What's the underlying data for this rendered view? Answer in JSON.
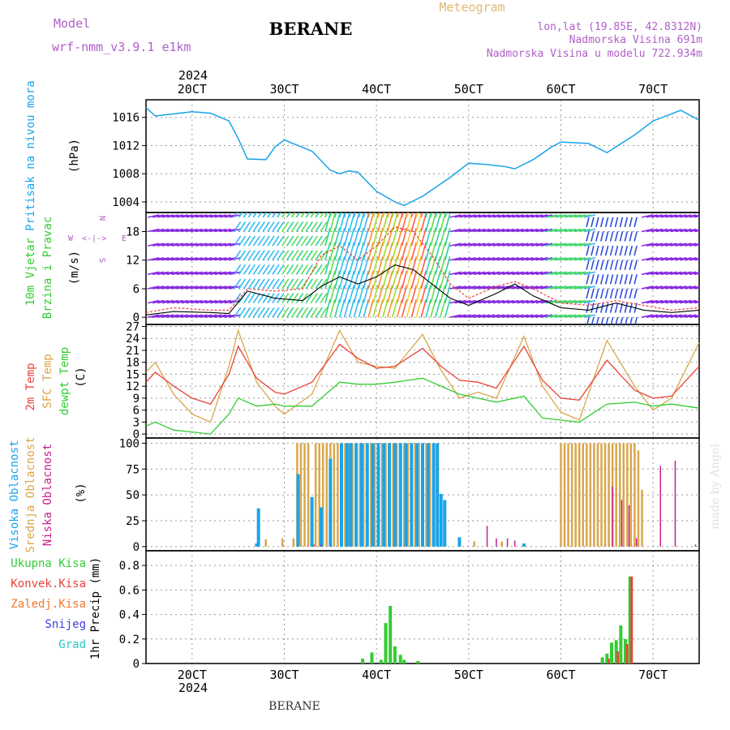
{
  "header": {
    "title": "BERANE",
    "meteogram_label": "Meteogram",
    "model_label": "Model",
    "model_name": "wrf-nmm_v3.9.1  e1km",
    "location": "lon,lat (19.85E, 42.8312N)",
    "elevation": "Nadmorska Visina 691m",
    "model_elevation": "Nadmorska Visina u modelu 722.934m",
    "footer": "BERANE",
    "watermark": "made by Angel",
    "year": "2024"
  },
  "colors": {
    "pressure": "#1aa3e8",
    "temp2m": "#e8443a",
    "sfc_temp": "#d9a64a",
    "dewpt": "#33cc33",
    "high_cloud": "#1aa3e8",
    "mid_cloud": "#d9a64a",
    "low_cloud": "#c8208c",
    "total_precip": "#33cc33",
    "convective_precip": "#e8443a",
    "freezing_precip": "#f07830",
    "snow": "#3f3fe0",
    "hail": "#22c8c8"
  },
  "chart_data": [
    {
      "type": "line",
      "panel": "pressure",
      "ylabel_lines": [
        "Pritisak na nivou mora",
        "(hPa)"
      ],
      "x_ticks": [
        "20CT",
        "30CT",
        "40CT",
        "50CT",
        "60CT",
        "70CT"
      ],
      "y_ticks": [
        1004,
        1008,
        1012,
        1016
      ],
      "ylim": [
        1002.5,
        1018.5
      ],
      "xlim": [
        1.5,
        7.5
      ],
      "grid": true,
      "series": [
        {
          "x": [
            1.5,
            1.6,
            1.8,
            2.0,
            2.2,
            2.4,
            2.5,
            2.6,
            2.8,
            2.9,
            3.0,
            3.3,
            3.5,
            3.6,
            3.7,
            3.8,
            4.0,
            4.2,
            4.3,
            4.5,
            4.8,
            5.0,
            5.2,
            5.4,
            5.5,
            5.7,
            5.9,
            6.0,
            6.3,
            6.5,
            6.8,
            7.0,
            7.3,
            7.5
          ],
          "y": [
            1017.4,
            1016.2,
            1016.5,
            1016.8,
            1016.6,
            1015.5,
            1013.0,
            1010.1,
            1010.0,
            1011.8,
            1012.8,
            1011.2,
            1008.5,
            1008.0,
            1008.4,
            1008.2,
            1005.5,
            1004.0,
            1003.5,
            1004.8,
            1007.5,
            1009.5,
            1009.3,
            1009.0,
            1008.7,
            1010.0,
            1011.8,
            1012.5,
            1012.3,
            1011.0,
            1013.5,
            1015.5,
            1017.0,
            1015.6
          ]
        }
      ]
    },
    {
      "type": "line",
      "panel": "wind",
      "ylabel_lines": [
        "10m Vjetar",
        "Brzina i Pravac",
        "(m/s)"
      ],
      "direction_legend": "N, W, E, S",
      "y_ticks": [
        0,
        6,
        12,
        18
      ],
      "ylim": [
        -1.5,
        22
      ],
      "xlim": [
        1.5,
        7.5
      ],
      "grid": true,
      "series": [
        {
          "x": [
            1.5,
            1.8,
            2.2,
            2.4,
            2.6,
            2.9,
            3.2,
            3.4,
            3.6,
            3.8,
            4.0,
            4.2,
            4.4,
            4.6,
            4.8,
            5.0,
            5.3,
            5.5,
            5.7,
            6.0,
            6.3,
            6.6,
            6.9,
            7.2,
            7.5
          ],
          "y": [
            0.5,
            1.2,
            1.0,
            0.8,
            5.5,
            4.0,
            3.5,
            6.5,
            8.5,
            7.0,
            8.5,
            11.0,
            10.0,
            7.0,
            4.0,
            2.5,
            5.0,
            7.0,
            4.5,
            2.0,
            1.5,
            3.0,
            1.5,
            1.0,
            1.5
          ]
        },
        {
          "x": [
            1.5,
            1.8,
            2.2,
            2.4,
            2.6,
            2.9,
            3.2,
            3.4,
            3.6,
            3.8,
            4.0,
            4.2,
            4.4,
            4.6,
            4.8,
            5.0,
            5.3,
            5.5,
            5.7,
            6.0,
            6.3,
            6.6,
            6.9,
            7.2,
            7.5
          ],
          "y": [
            1.0,
            2.0,
            1.5,
            1.5,
            6.0,
            5.5,
            6.0,
            13.0,
            15.0,
            12.0,
            15.0,
            19.0,
            18.0,
            13.0,
            7.0,
            4.0,
            6.5,
            7.5,
            6.0,
            3.0,
            2.5,
            3.5,
            2.5,
            1.5,
            2.0
          ]
        }
      ]
    },
    {
      "type": "line",
      "panel": "temperature",
      "ylabel_lines": [
        "2m Temp",
        "SFC Temp",
        "dewpt Temp",
        "(C)"
      ],
      "y_ticks": [
        0,
        3,
        6,
        9,
        12,
        15,
        18,
        21,
        24,
        27
      ],
      "ylim": [
        -1,
        27.5
      ],
      "xlim": [
        1.5,
        7.5
      ],
      "grid": true,
      "series": [
        {
          "name": "2m Temp",
          "x": [
            1.5,
            1.6,
            1.8,
            2.0,
            2.2,
            2.4,
            2.5,
            2.7,
            2.9,
            3.0,
            3.3,
            3.6,
            3.8,
            4.0,
            4.2,
            4.5,
            4.7,
            4.9,
            5.1,
            5.3,
            5.6,
            5.8,
            6.0,
            6.2,
            6.5,
            6.8,
            7.0,
            7.2,
            7.5
          ],
          "y": [
            13,
            15.5,
            12,
            9,
            7.5,
            15,
            22,
            14,
            10.5,
            10,
            13,
            22.5,
            19,
            16.5,
            17,
            21.5,
            17,
            13.5,
            13,
            11.5,
            22,
            13.5,
            9,
            8.5,
            18.5,
            11,
            9,
            9.5,
            17
          ]
        },
        {
          "name": "SFC Temp",
          "x": [
            1.5,
            1.6,
            1.8,
            2.0,
            2.2,
            2.4,
            2.5,
            2.7,
            2.9,
            3.0,
            3.3,
            3.6,
            3.8,
            4.0,
            4.2,
            4.5,
            4.7,
            4.9,
            5.1,
            5.3,
            5.6,
            5.8,
            6.0,
            6.2,
            6.5,
            6.8,
            7.0,
            7.2,
            7.5
          ],
          "y": [
            15.5,
            18,
            10,
            5,
            3,
            17,
            26,
            13,
            7,
            5,
            10,
            26,
            18,
            17,
            16.5,
            25,
            16,
            9,
            10.5,
            9,
            24.5,
            12,
            5.5,
            3.5,
            23.5,
            12,
            6,
            9,
            23
          ]
        },
        {
          "name": "dewpt Temp",
          "x": [
            1.5,
            1.6,
            1.8,
            2.0,
            2.2,
            2.4,
            2.5,
            2.7,
            2.9,
            3.0,
            3.3,
            3.6,
            3.8,
            4.0,
            4.2,
            4.5,
            4.7,
            4.9,
            5.1,
            5.3,
            5.6,
            5.8,
            6.0,
            6.2,
            6.5,
            6.8,
            7.0,
            7.2,
            7.5
          ],
          "y": [
            2,
            3,
            1,
            0.5,
            0,
            5,
            9,
            7,
            7.5,
            7,
            7,
            13,
            12.5,
            12.5,
            13,
            14,
            12,
            10,
            9,
            8,
            9.5,
            4,
            3.5,
            3,
            7.5,
            8,
            7,
            7.5,
            6.5
          ]
        }
      ]
    },
    {
      "type": "bar",
      "panel": "cloud",
      "ylabel_lines": [
        "Visoka Oblacnost",
        "Srednja Oblacnost",
        "Niska Oblacnost",
        "(%)"
      ],
      "y_ticks": [
        0,
        25,
        50,
        75,
        100
      ],
      "ylim": [
        -4,
        105
      ],
      "xlim": [
        1.5,
        7.5
      ],
      "grid": true,
      "series": [
        {
          "name": "Visoka Oblacnost",
          "x": [
            2.7,
            2.72,
            3.15,
            3.3,
            3.4,
            3.5,
            3.62,
            3.68,
            3.72,
            3.78,
            3.84,
            3.9,
            3.96,
            4.02,
            4.08,
            4.14,
            4.2,
            4.26,
            4.32,
            4.38,
            4.44,
            4.5,
            4.56,
            4.62,
            4.66,
            4.7,
            4.74,
            4.9,
            5.6
          ],
          "y": [
            3,
            37,
            70,
            48,
            38,
            85,
            100,
            100,
            100,
            100,
            100,
            100,
            100,
            100,
            100,
            100,
            100,
            100,
            100,
            100,
            100,
            100,
            100,
            100,
            100,
            51,
            45,
            9,
            3
          ]
        },
        {
          "name": "Srednja Oblacnost",
          "x": [
            2.8,
            2.98,
            3.1,
            3.14,
            3.18,
            3.22,
            3.26,
            3.3,
            3.34,
            3.38,
            3.42,
            3.46,
            3.5,
            3.54,
            3.58,
            3.62,
            3.66,
            3.7,
            3.74,
            3.78,
            3.82,
            3.86,
            3.9,
            3.94,
            3.98,
            4.02,
            4.06,
            4.1,
            4.14,
            4.18,
            4.22,
            4.26,
            4.3,
            4.34,
            4.38,
            4.42,
            4.46,
            4.5,
            4.54,
            4.58,
            5.06,
            5.36,
            6.0,
            6.04,
            6.08,
            6.12,
            6.16,
            6.2,
            6.24,
            6.28,
            6.32,
            6.36,
            6.4,
            6.44,
            6.48,
            6.52,
            6.56,
            6.6,
            6.64,
            6.68,
            6.72,
            6.76,
            6.8,
            6.84,
            6.88
          ],
          "y": [
            7,
            8,
            8,
            100,
            100,
            100,
            100,
            30,
            100,
            100,
            100,
            100,
            100,
            100,
            100,
            100,
            100,
            100,
            100,
            100,
            100,
            100,
            100,
            100,
            100,
            100,
            100,
            100,
            100,
            100,
            100,
            100,
            100,
            100,
            100,
            100,
            100,
            100,
            100,
            100,
            5,
            5,
            100,
            100,
            100,
            100,
            100,
            100,
            100,
            100,
            100,
            100,
            100,
            100,
            100,
            100,
            100,
            100,
            100,
            100,
            100,
            100,
            100,
            93,
            55
          ]
        },
        {
          "name": "Niska Oblacnost",
          "x": [
            3.32,
            3.4,
            5.2,
            5.3,
            5.42,
            5.5,
            6.56,
            6.66,
            6.74,
            6.82,
            7.08,
            7.24,
            7.46
          ],
          "y": [
            2,
            2,
            20,
            8,
            8,
            6,
            58,
            45,
            40,
            8,
            78,
            83,
            2
          ]
        }
      ]
    },
    {
      "type": "bar",
      "panel": "precip",
      "ylabel_lines": [
        "1hr Precip (mm)"
      ],
      "legend": [
        "Ukupna Kisa",
        "Konvek.Kisa",
        "Zaledj.Kisa",
        "Snijeg",
        "Grad"
      ],
      "x_ticks": [
        "20CT",
        "30CT",
        "40CT",
        "50CT",
        "60CT",
        "70CT"
      ],
      "y_ticks": [
        0,
        0.2,
        0.4,
        0.6,
        0.8
      ],
      "ylim": [
        0,
        0.92
      ],
      "xlim": [
        1.5,
        7.5
      ],
      "grid": true,
      "series": [
        {
          "name": "Ukupna Kisa",
          "x": [
            3.85,
            3.95,
            4.05,
            4.1,
            4.15,
            4.2,
            4.26,
            4.3,
            4.45,
            6.45,
            6.5,
            6.55,
            6.6,
            6.65,
            6.7,
            6.75
          ],
          "y": [
            0.04,
            0.09,
            0.03,
            0.33,
            0.47,
            0.14,
            0.07,
            0.03,
            0.02,
            0.05,
            0.08,
            0.17,
            0.19,
            0.31,
            0.2,
            0.71
          ]
        },
        {
          "name": "Konvek.Kisa",
          "x": [
            6.5,
            6.6,
            6.7,
            6.75
          ],
          "y": [
            0.04,
            0.1,
            0.16,
            0.71
          ]
        }
      ]
    }
  ]
}
